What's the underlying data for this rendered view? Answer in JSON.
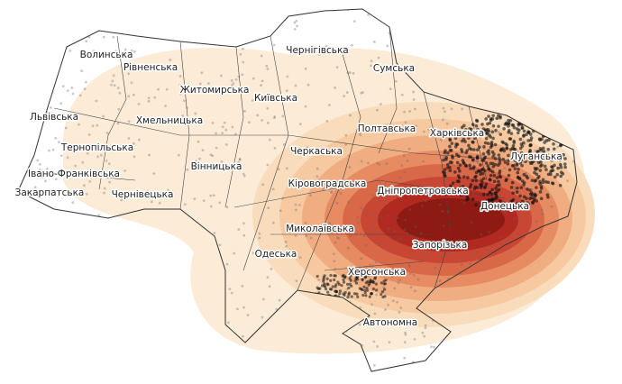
{
  "regions": [
    {
      "label": "Волинська"
    },
    {
      "label": "Рівненська"
    },
    {
      "label": "Житомирська"
    },
    {
      "label": "Чернігівська"
    },
    {
      "label": "Сумська"
    },
    {
      "label": "Київська"
    },
    {
      "label": "Львівська"
    },
    {
      "label": "Хмельницька"
    },
    {
      "label": "Полтавська"
    },
    {
      "label": "Харківська"
    },
    {
      "label": "Тернопільська"
    },
    {
      "label": "Черкаська"
    },
    {
      "label": "Луганська"
    },
    {
      "label": "Івано-Франківська"
    },
    {
      "label": "Вінницька"
    },
    {
      "label": "Кіровоградська"
    },
    {
      "label": "Дніпропетровська"
    },
    {
      "label": "Закарпатська"
    },
    {
      "label": "Чернівецька"
    },
    {
      "label": "Донецька"
    },
    {
      "label": "Миколаївська"
    },
    {
      "label": "Запорізька"
    },
    {
      "label": "Одеська"
    },
    {
      "label": "Херсонська"
    },
    {
      "label": "Автономна"
    }
  ]
}
